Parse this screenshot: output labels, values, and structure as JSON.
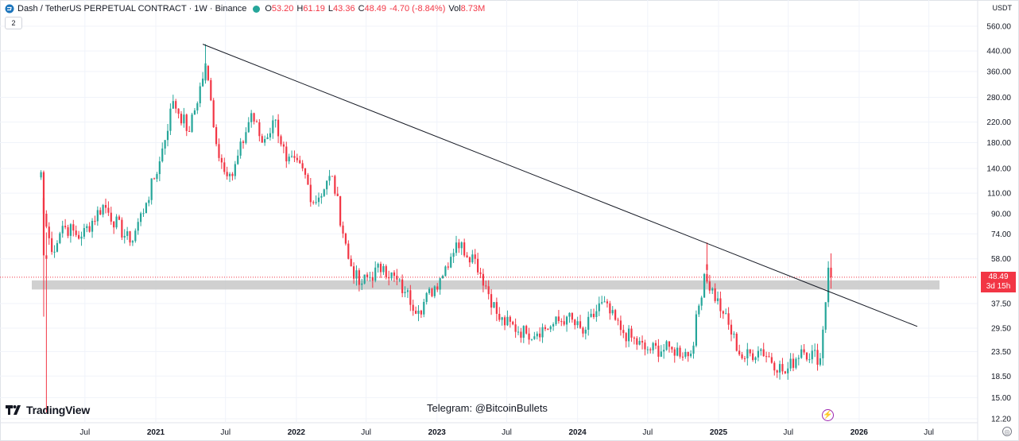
{
  "header": {
    "title": "Dash / TetherUS PERPETUAL CONTRACT · 1W · Binance",
    "ohlc": [
      {
        "key": "O",
        "value": "53.20"
      },
      {
        "key": "H",
        "value": "61.19"
      },
      {
        "key": "L",
        "value": "43.36"
      },
      {
        "key": "C",
        "value": "48.49"
      },
      {
        "key": "",
        "value": "-4.70 (-8.84%)"
      },
      {
        "key": "Vol",
        "value": "8.73M"
      }
    ],
    "indicator_count": "2",
    "currency": "USDT"
  },
  "price_label": {
    "price": "48.49",
    "countdown": "3d 15h",
    "color": "#f23645"
  },
  "watermark": {
    "logo": "TradingView",
    "text": "Telegram: @BitcoinBullets"
  },
  "colors": {
    "up": "#26a69a",
    "down": "#f23645",
    "grid": "#f0f3fa",
    "line": "#131722",
    "zone": "#c8c8c8"
  },
  "chart_data": {
    "type": "candlestick",
    "scale": "log",
    "y_axis_ticks": [
      "560.00",
      "440.00",
      "360.00",
      "280.00",
      "220.00",
      "180.00",
      "140.00",
      "110.00",
      "90.00",
      "74.00",
      "58.00",
      "37.50",
      "29.50",
      "23.50",
      "18.50",
      "15.00",
      "12.20"
    ],
    "x_axis_ticks": [
      "Jul",
      "2021",
      "Jul",
      "2022",
      "Jul",
      "2023",
      "Jul",
      "2024",
      "Jul",
      "2025",
      "Jul",
      "2026",
      "Jul"
    ],
    "ylim": [
      12.2,
      560
    ],
    "grid": true,
    "anchors": [
      {
        "date": "2020-03-09",
        "close": 135
      },
      {
        "date": "2020-03-16",
        "close": 90
      },
      {
        "date": "2020-04-06",
        "close": 62
      },
      {
        "date": "2020-05-04",
        "close": 80
      },
      {
        "date": "2020-06-22",
        "close": 72
      },
      {
        "date": "2020-08-17",
        "close": 98
      },
      {
        "date": "2020-10-26",
        "close": 68
      },
      {
        "date": "2020-12-07",
        "close": 100
      },
      {
        "date": "2021-01-11",
        "close": 150
      },
      {
        "date": "2021-02-15",
        "close": 270
      },
      {
        "date": "2021-03-29",
        "close": 200
      },
      {
        "date": "2021-05-10",
        "close": 380
      },
      {
        "date": "2021-06-14",
        "close": 155
      },
      {
        "date": "2021-07-19",
        "close": 130
      },
      {
        "date": "2021-09-06",
        "close": 240
      },
      {
        "date": "2021-10-04",
        "close": 180
      },
      {
        "date": "2021-11-08",
        "close": 225
      },
      {
        "date": "2021-12-06",
        "close": 150
      },
      {
        "date": "2022-01-17",
        "close": 140
      },
      {
        "date": "2022-02-14",
        "close": 100
      },
      {
        "date": "2022-04-04",
        "close": 130
      },
      {
        "date": "2022-05-16",
        "close": 58
      },
      {
        "date": "2022-06-13",
        "close": 45
      },
      {
        "date": "2022-08-15",
        "close": 54
      },
      {
        "date": "2022-10-10",
        "close": 42
      },
      {
        "date": "2022-11-14",
        "close": 35
      },
      {
        "date": "2023-01-09",
        "close": 48
      },
      {
        "date": "2023-02-20",
        "close": 68
      },
      {
        "date": "2023-04-10",
        "close": 58
      },
      {
        "date": "2023-06-12",
        "close": 32
      },
      {
        "date": "2023-08-21",
        "close": 28
      },
      {
        "date": "2023-10-23",
        "close": 30
      },
      {
        "date": "2023-12-04",
        "close": 33
      },
      {
        "date": "2024-01-15",
        "close": 28
      },
      {
        "date": "2024-03-04",
        "close": 38
      },
      {
        "date": "2024-04-22",
        "close": 29
      },
      {
        "date": "2024-06-24",
        "close": 24
      },
      {
        "date": "2024-09-02",
        "close": 24
      },
      {
        "date": "2024-10-21",
        "close": 23
      },
      {
        "date": "2024-11-25",
        "close": 50
      },
      {
        "date": "2025-01-13",
        "close": 34
      },
      {
        "date": "2025-03-03",
        "close": 22
      },
      {
        "date": "2025-04-21",
        "close": 24
      },
      {
        "date": "2025-06-23",
        "close": 19
      },
      {
        "date": "2025-08-04",
        "close": 24
      },
      {
        "date": "2025-09-22",
        "close": 22
      },
      {
        "date": "2025-10-06",
        "close": 38
      },
      {
        "date": "2025-10-13",
        "close": 53.2
      },
      {
        "date": "2025-10-20",
        "close": 48.49
      }
    ],
    "last_candle": {
      "open": 53.2,
      "high": 61.19,
      "low": 43.36,
      "close": 48.49
    },
    "trendline": [
      {
        "date": "2021-05-03",
        "price": 470
      },
      {
        "date": "2026-06-01",
        "price": 30
      }
    ],
    "support_zone": [
      43,
      47
    ],
    "current_price_line": 48.49
  }
}
